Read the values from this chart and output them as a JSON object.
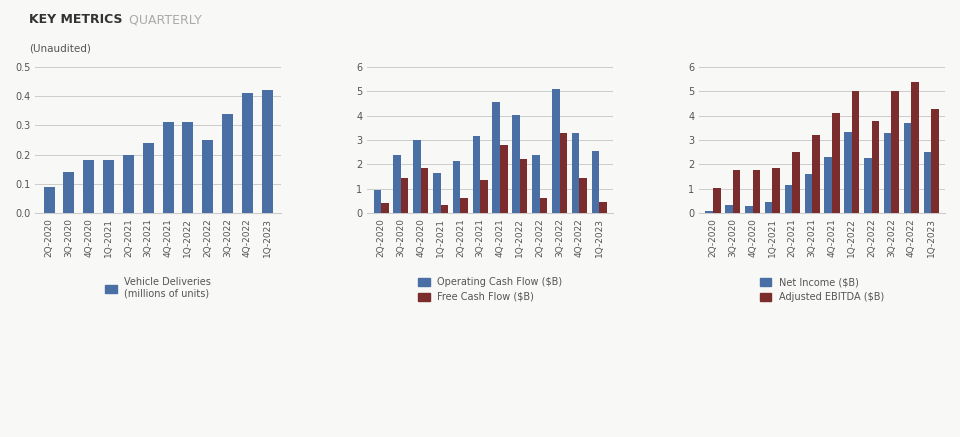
{
  "title_bold": "KEY METRICS",
  "title_light": " QUARTERLY",
  "subtitle": "(Unaudited)",
  "quarters": [
    "2Q-2020",
    "3Q-2020",
    "4Q-2020",
    "1Q-2021",
    "2Q-2021",
    "3Q-2021",
    "4Q-2021",
    "1Q-2022",
    "2Q-2022",
    "3Q-2022",
    "4Q-2022",
    "1Q-2023"
  ],
  "deliveries": [
    0.09,
    0.14,
    0.18,
    0.18,
    0.2,
    0.24,
    0.31,
    0.31,
    0.25,
    0.34,
    0.41,
    0.42
  ],
  "op_cash_flow": [
    0.96,
    2.4,
    3.01,
    1.65,
    2.14,
    3.15,
    4.55,
    4.01,
    2.38,
    5.09,
    3.3,
    2.53
  ],
  "free_cash_flow": [
    0.42,
    1.43,
    1.86,
    0.31,
    0.62,
    1.37,
    2.78,
    2.23,
    0.62,
    3.3,
    1.44,
    0.44
  ],
  "net_income": [
    0.1,
    0.33,
    0.27,
    0.44,
    1.14,
    1.62,
    2.32,
    3.33,
    2.26,
    3.29,
    3.69,
    2.51
  ],
  "adj_ebitda": [
    1.02,
    1.76,
    1.78,
    1.83,
    2.49,
    3.21,
    4.1,
    5.02,
    3.78,
    5.02,
    5.39,
    4.29
  ],
  "color_blue": "#4a6fa5",
  "color_red": "#7b2d2d",
  "bg_color": "#f8f8f6",
  "grid_color": "#cccccc",
  "text_color": "#555555",
  "title_color": "#333333",
  "title_light_color": "#aaaaaa",
  "ylim1": [
    0,
    0.5
  ],
  "ylim2": [
    0,
    6
  ],
  "ylim3": [
    0,
    6
  ],
  "yticks1": [
    0.0,
    0.1,
    0.2,
    0.3,
    0.4,
    0.5
  ],
  "yticks2": [
    0,
    1,
    2,
    3,
    4,
    5,
    6
  ],
  "yticks3": [
    0,
    1,
    2,
    3,
    4,
    5,
    6
  ],
  "legend1": "Vehicle Deliveries\n(millions of units)",
  "legend2a": "Operating Cash Flow ($B)",
  "legend2b": "Free Cash Flow ($B)",
  "legend3a": "Net Income ($B)",
  "legend3b": "Adjusted EBITDA ($B)"
}
